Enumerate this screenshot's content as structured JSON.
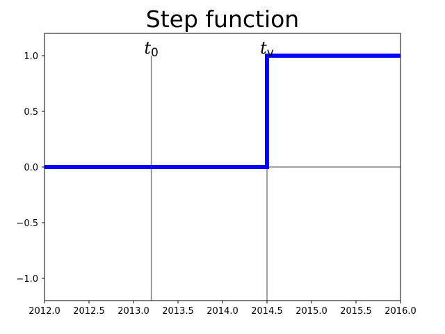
{
  "chart_data": {
    "type": "line",
    "title": "Step function",
    "xlabel": "",
    "ylabel": "",
    "xlim": [
      2012.0,
      2016.0
    ],
    "ylim": [
      -1.2,
      1.2
    ],
    "xticks": [
      2012.0,
      2012.5,
      2013.0,
      2013.5,
      2014.0,
      2014.5,
      2015.0,
      2015.5,
      2016.0
    ],
    "xtick_labels": [
      "2012.0",
      "2012.5",
      "2013.0",
      "2013.5",
      "2014.0",
      "2014.5",
      "2015.0",
      "2015.5",
      "2016.0"
    ],
    "yticks": [
      -1.0,
      -0.5,
      0.0,
      0.5,
      1.0
    ],
    "ytick_labels": [
      "−1.0",
      "−0.5",
      "0.0",
      "0.5",
      "1.0"
    ],
    "grid": false,
    "series": [
      {
        "color": "#0000ff",
        "x": [
          2012.0,
          2014.5,
          2014.5,
          2016.0
        ],
        "y": [
          0,
          0,
          1,
          1
        ]
      }
    ],
    "vlines": [
      {
        "x": 2013.2,
        "ymin": -1.2,
        "ymax": 1.0,
        "color": "#808080",
        "label": "t",
        "subscript": "0"
      },
      {
        "x": 2014.5,
        "ymin": -1.2,
        "ymax": 1.0,
        "color": "#808080",
        "label": "t",
        "subscript": "v"
      }
    ],
    "hlines": [
      {
        "y": 0.0,
        "xmin": 2014.5,
        "xmax": 2016.0,
        "color": "#808080"
      }
    ]
  }
}
